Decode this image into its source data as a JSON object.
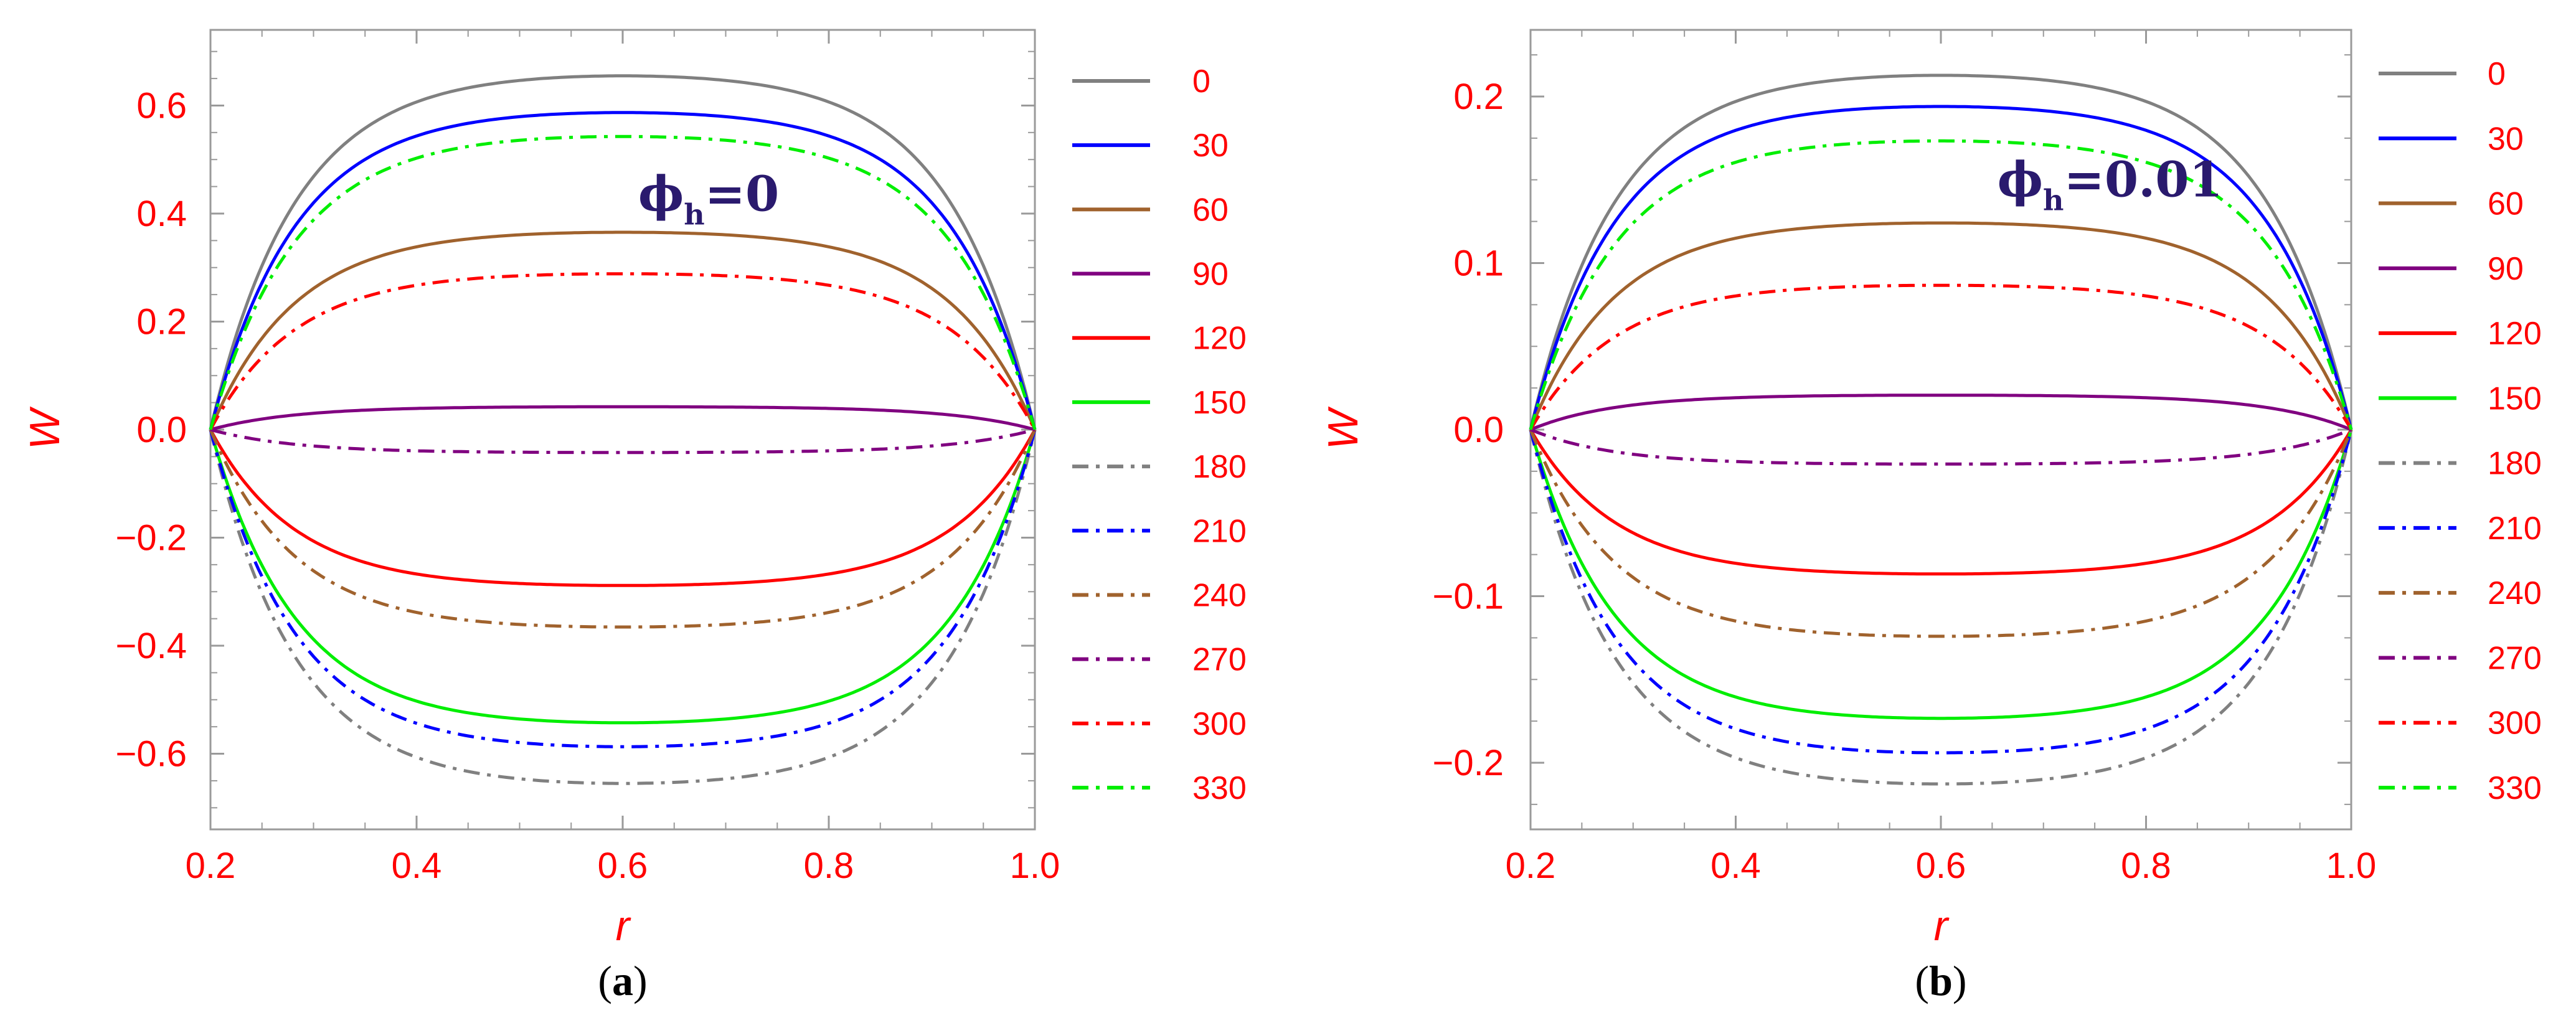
{
  "colors": {
    "axis": "#9a9a9a",
    "tick_text": "#ff0000",
    "annotation": "#2a1a6e",
    "caption": "#000000"
  },
  "legend_title": "",
  "chart_data": [
    {
      "type": "line",
      "panel": "a",
      "caption": "(a)",
      "caption_letter": "a",
      "xlabel": "r",
      "ylabel": "W",
      "xlim": [
        0.2,
        1.0
      ],
      "ylim": [
        -0.74,
        0.74
      ],
      "xticks": [
        0.2,
        0.4,
        0.6,
        0.8,
        1.0
      ],
      "xtick_labels": [
        "0.2",
        "0.4",
        "0.6",
        "0.8",
        "1.0"
      ],
      "yticks": [
        -0.6,
        -0.4,
        -0.2,
        0.0,
        0.2,
        0.4,
        0.6
      ],
      "ytick_labels": [
        "−0.6",
        "−0.4",
        "−0.2",
        "0.0",
        "0.2",
        "0.4",
        "0.6"
      ],
      "annotation": {
        "symbol": "ϕ",
        "sub": "h",
        "text": "=0",
        "x": 0.615,
        "y": 0.405
      },
      "series": [
        {
          "name": "0",
          "plateau": 0.665,
          "color": "#808080",
          "dash": "solid"
        },
        {
          "name": "30",
          "plateau": 0.596,
          "color": "#0000ff",
          "dash": "solid"
        },
        {
          "name": "60",
          "plateau": 0.371,
          "color": "#a0622d",
          "dash": "solid"
        },
        {
          "name": "90",
          "plateau": 0.043,
          "color": "#800080",
          "dash": "solid"
        },
        {
          "name": "120",
          "plateau": -0.293,
          "color": "#ff0000",
          "dash": "solid"
        },
        {
          "name": "150",
          "plateau": -0.551,
          "color": "#00ee00",
          "dash": "solid"
        },
        {
          "name": "180",
          "plateau": -0.665,
          "color": "#808080",
          "dash": "dashdot"
        },
        {
          "name": "210",
          "plateau": -0.596,
          "color": "#0000ff",
          "dash": "dashdot"
        },
        {
          "name": "240",
          "plateau": -0.371,
          "color": "#a0622d",
          "dash": "dashdot"
        },
        {
          "name": "270",
          "plateau": -0.043,
          "color": "#800080",
          "dash": "dashdot"
        },
        {
          "name": "300",
          "plateau": 0.293,
          "color": "#ff0000",
          "dash": "dashdot"
        },
        {
          "name": "330",
          "plateau": 0.551,
          "color": "#00ee00",
          "dash": "dashdot"
        }
      ]
    },
    {
      "type": "line",
      "panel": "b",
      "caption": "(b)",
      "caption_letter": "b",
      "xlabel": "r",
      "ylabel": "W",
      "xlim": [
        0.2,
        1.0
      ],
      "ylim": [
        -0.24,
        0.24
      ],
      "xticks": [
        0.2,
        0.4,
        0.6,
        0.8,
        1.0
      ],
      "xtick_labels": [
        "0.2",
        "0.4",
        "0.6",
        "0.8",
        "1.0"
      ],
      "yticks": [
        -0.2,
        -0.1,
        0.0,
        0.1,
        0.2
      ],
      "ytick_labels": [
        "−0.2",
        "−0.1",
        "0.0",
        "0.1",
        "0.2"
      ],
      "annotation": {
        "symbol": "ϕ",
        "sub": "h",
        "text": "=0.01",
        "x": 0.655,
        "y": 0.14
      },
      "series": [
        {
          "name": "0",
          "plateau": 0.216,
          "color": "#808080",
          "dash": "solid"
        },
        {
          "name": "30",
          "plateau": 0.197,
          "color": "#0000ff",
          "dash": "solid"
        },
        {
          "name": "60",
          "plateau": 0.126,
          "color": "#a0622d",
          "dash": "solid"
        },
        {
          "name": "90",
          "plateau": 0.021,
          "color": "#800080",
          "dash": "solid"
        },
        {
          "name": "120",
          "plateau": -0.088,
          "color": "#ff0000",
          "dash": "solid"
        },
        {
          "name": "150",
          "plateau": -0.176,
          "color": "#00ee00",
          "dash": "solid"
        },
        {
          "name": "180",
          "plateau": -0.216,
          "color": "#808080",
          "dash": "dashdot"
        },
        {
          "name": "210",
          "plateau": -0.197,
          "color": "#0000ff",
          "dash": "dashdot"
        },
        {
          "name": "240",
          "plateau": -0.126,
          "color": "#a0622d",
          "dash": "dashdot"
        },
        {
          "name": "270",
          "plateau": -0.021,
          "color": "#800080",
          "dash": "dashdot"
        },
        {
          "name": "300",
          "plateau": 0.088,
          "color": "#ff0000",
          "dash": "dashdot"
        },
        {
          "name": "330",
          "plateau": 0.176,
          "color": "#00ee00",
          "dash": "dashdot"
        }
      ]
    }
  ]
}
